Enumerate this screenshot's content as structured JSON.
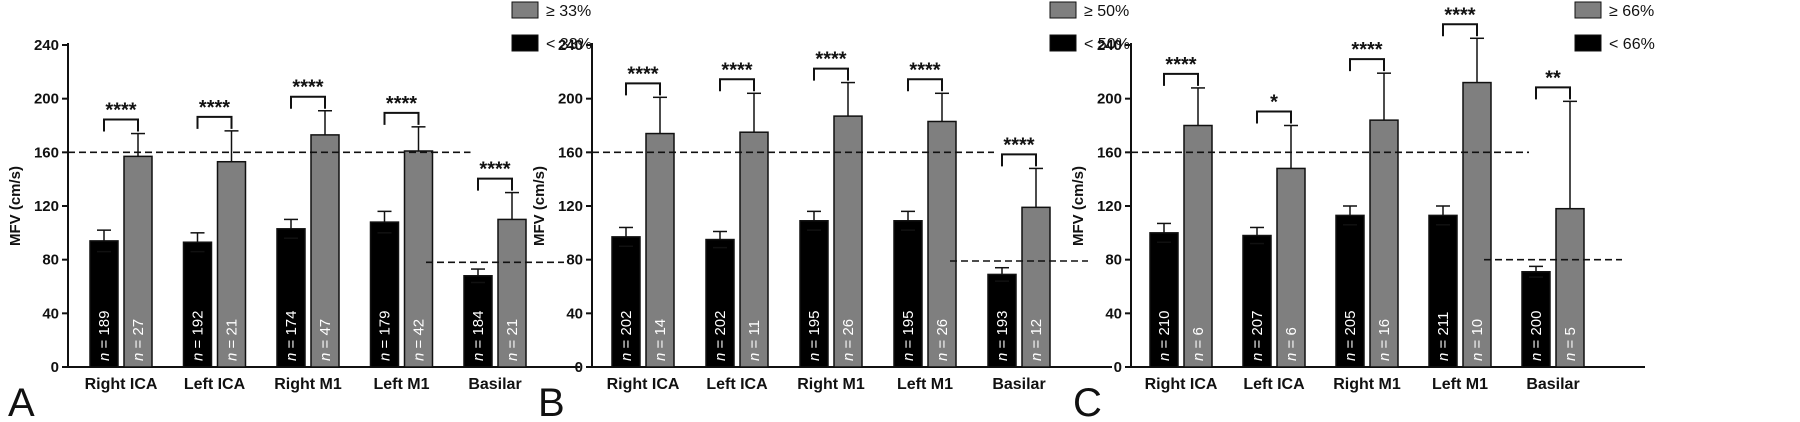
{
  "chart_data": [
    {
      "panel": "A",
      "type": "bar",
      "ylabel": "MFV (cm/s)",
      "ylim": [
        0,
        240
      ],
      "yticks": [
        0,
        40,
        80,
        120,
        160,
        200,
        240
      ],
      "categories": [
        "Right ICA",
        "Left ICA",
        "Right M1",
        "Left M1",
        "Basilar"
      ],
      "legend": {
        "position": "top-right",
        "entries": [
          "≥ 33%",
          "< 33%"
        ]
      },
      "colors": {
        "high": "#7f7f7f",
        "low": "#000000"
      },
      "series": [
        {
          "name": "< 33%",
          "values": [
            94,
            93,
            103,
            108,
            68
          ],
          "errors": [
            8,
            7,
            7,
            8,
            5
          ],
          "n": [
            "189",
            "192",
            "174",
            "179",
            "184"
          ]
        },
        {
          "name": "≥ 33%",
          "values": [
            157,
            153,
            173,
            161,
            110
          ],
          "errors": [
            17,
            23,
            18,
            18,
            20
          ],
          "n": [
            "27",
            "21",
            "47",
            "42",
            "21"
          ]
        }
      ],
      "significance": [
        "****",
        "****",
        "****",
        "****",
        "****"
      ],
      "reference_lines": [
        {
          "value": 160,
          "categories": [
            0,
            3
          ]
        },
        {
          "value": 78,
          "categories": [
            4,
            4
          ]
        }
      ]
    },
    {
      "panel": "B",
      "type": "bar",
      "ylabel": "MFV (cm/s)",
      "ylim": [
        0,
        240
      ],
      "yticks": [
        0,
        40,
        80,
        120,
        160,
        200,
        240
      ],
      "categories": [
        "Right ICA",
        "Left ICA",
        "Right M1",
        "Left M1",
        "Basilar"
      ],
      "legend": {
        "position": "top-right",
        "entries": [
          "≥ 50%",
          "< 50%"
        ]
      },
      "colors": {
        "high": "#7f7f7f",
        "low": "#000000"
      },
      "series": [
        {
          "name": "< 50%",
          "values": [
            97,
            95,
            109,
            109,
            69
          ],
          "errors": [
            7,
            6,
            7,
            7,
            5
          ],
          "n": [
            "202",
            "202",
            "195",
            "195",
            "193"
          ]
        },
        {
          "name": "≥ 50%",
          "values": [
            174,
            175,
            187,
            183,
            119
          ],
          "errors": [
            27,
            29,
            25,
            21,
            29
          ],
          "n": [
            "14",
            "11",
            "26",
            "26",
            "12"
          ]
        }
      ],
      "significance": [
        "****",
        "****",
        "****",
        "****",
        "****"
      ],
      "reference_lines": [
        {
          "value": 160,
          "categories": [
            0,
            3
          ]
        },
        {
          "value": 79,
          "categories": [
            4,
            4
          ]
        }
      ]
    },
    {
      "panel": "C",
      "type": "bar",
      "ylabel": "MFV (cm/s)",
      "ylim": [
        0,
        240
      ],
      "yticks": [
        0,
        40,
        80,
        120,
        160,
        200,
        240
      ],
      "categories": [
        "Right ICA",
        "Left ICA",
        "Right M1",
        "Left M1",
        "Basilar"
      ],
      "legend": {
        "position": "top-right",
        "entries": [
          "≥ 66%",
          "< 66%"
        ]
      },
      "colors": {
        "high": "#7f7f7f",
        "low": "#000000"
      },
      "series": [
        {
          "name": "< 66%",
          "values": [
            100,
            98,
            113,
            113,
            71
          ],
          "errors": [
            7,
            6,
            7,
            7,
            4
          ],
          "n": [
            "210",
            "207",
            "205",
            "211",
            "200"
          ]
        },
        {
          "name": "≥ 66%",
          "values": [
            180,
            148,
            184,
            212,
            118
          ],
          "errors": [
            28,
            32,
            35,
            33,
            80
          ],
          "n": [
            "6",
            "6",
            "16",
            "10",
            "5"
          ]
        }
      ],
      "significance": [
        "****",
        "*",
        "****",
        "****",
        "**"
      ],
      "reference_lines": [
        {
          "value": 160,
          "categories": [
            0,
            3
          ]
        },
        {
          "value": 80,
          "categories": [
            4,
            4
          ]
        }
      ]
    }
  ]
}
